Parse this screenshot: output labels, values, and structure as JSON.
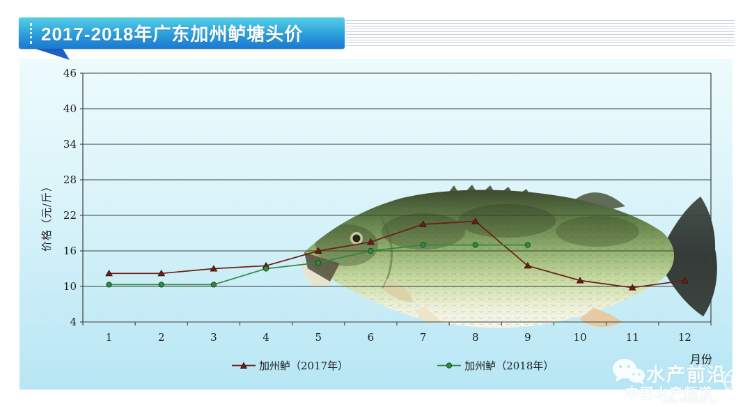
{
  "header": {
    "title": "2017-2018年广东加州鲈塘头价"
  },
  "chart_data": {
    "type": "line",
    "x": [
      1,
      2,
      3,
      4,
      5,
      6,
      7,
      8,
      9,
      10,
      11,
      12
    ],
    "xlabel": "月份",
    "ylabel": "价格（元/斤）",
    "ylim": [
      4,
      46
    ],
    "yticks": [
      4,
      10,
      16,
      22,
      28,
      34,
      40,
      46
    ],
    "grid": true,
    "legend_position": "bottom-center",
    "series": [
      {
        "name": "加州鲈（2017年）",
        "marker": "triangle",
        "color": "#6d1d13",
        "values": [
          12.2,
          12.2,
          13,
          13.5,
          16,
          17.5,
          20.5,
          21,
          13.5,
          11,
          9.8,
          11
        ]
      },
      {
        "name": "加州鲈（2018年）",
        "marker": "circle",
        "color": "#2e8b3c",
        "values": [
          10.3,
          10.3,
          10.3,
          13,
          14,
          16,
          17,
          17,
          17,
          null,
          null,
          null
        ]
      }
    ]
  },
  "watermark": {
    "brand": "水产前沿",
    "subtitle": "中国水产频道",
    "url": "www.fishfirst.cn"
  },
  "colors": {
    "banner_top": "#55d0e6",
    "banner_bottom": "#1b77d1",
    "card_top": "#edfbfd",
    "card_bottom": "#b7e6f4",
    "grid": "#3a4038",
    "series_2017": "#6d1d13",
    "series_2018": "#2e8b3c"
  }
}
